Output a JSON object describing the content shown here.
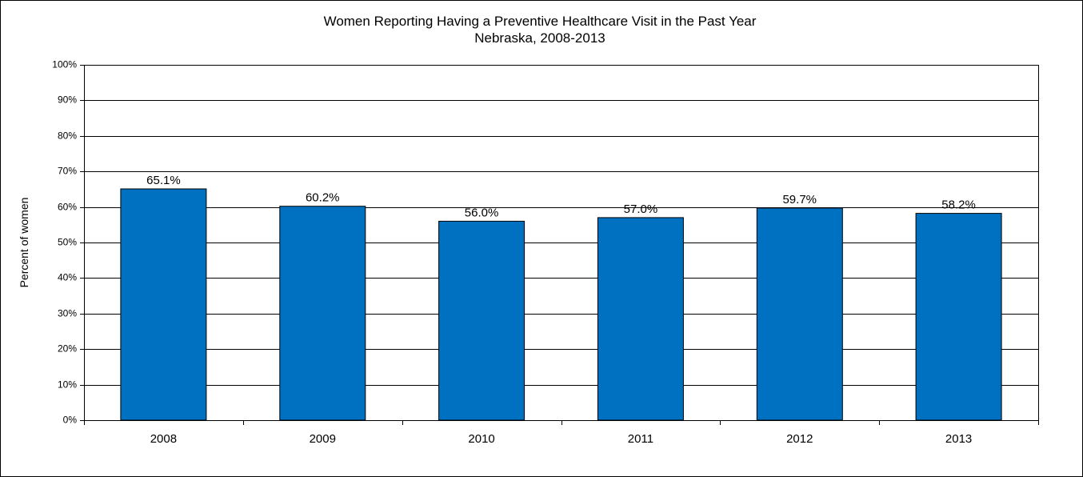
{
  "chart_data": {
    "type": "bar",
    "title": "Women Reporting Having a Preventive Healthcare Visit in the Past Year",
    "subtitle": "Nebraska, 2008-2013",
    "ylabel": "Percent of women",
    "xlabel": "",
    "categories": [
      "2008",
      "2009",
      "2010",
      "2011",
      "2012",
      "2013"
    ],
    "values": [
      65.1,
      60.2,
      56.0,
      57.0,
      59.7,
      58.2
    ],
    "data_labels": [
      "65.1%",
      "60.2%",
      "56.0%",
      "57.0%",
      "59.7%",
      "58.2%"
    ],
    "ylim": [
      0,
      100
    ],
    "yticks": [
      0,
      10,
      20,
      30,
      40,
      50,
      60,
      70,
      80,
      90,
      100
    ],
    "ytick_labels": [
      "0%",
      "10%",
      "20%",
      "30%",
      "40%",
      "50%",
      "60%",
      "70%",
      "80%",
      "90%",
      "100%"
    ],
    "grid": true,
    "legend": "none",
    "bar_color": "#0070C0",
    "border_color": "#000000"
  }
}
